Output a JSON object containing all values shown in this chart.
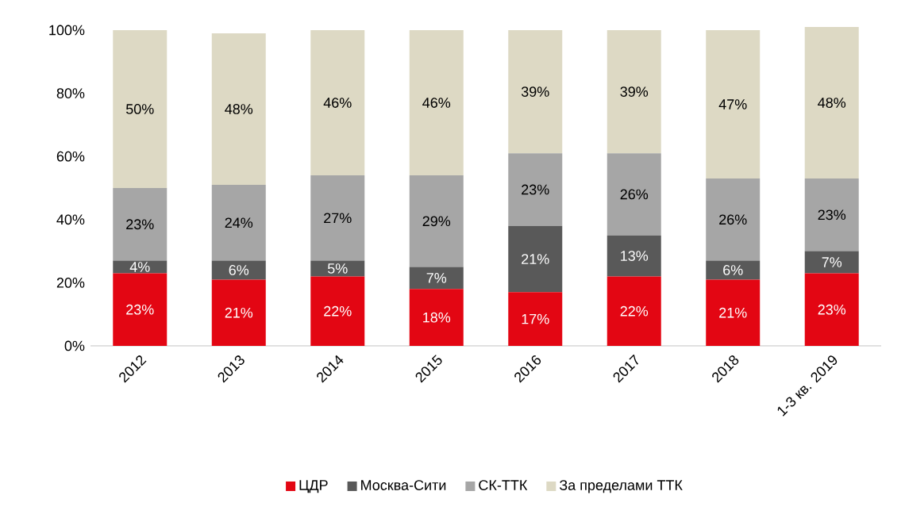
{
  "chart_data": {
    "type": "bar",
    "stacked": true,
    "legend": "bottom",
    "categories": [
      "2012",
      "2013",
      "2014",
      "2015",
      "2016",
      "2017",
      "2018",
      "1-3 кв. 2019"
    ],
    "ylim": [
      0,
      101
    ],
    "yticks": [
      {
        "value": 0,
        "label": "0%"
      },
      {
        "value": 20,
        "label": "20%"
      },
      {
        "value": 40,
        "label": "40%"
      },
      {
        "value": 60,
        "label": "60%"
      },
      {
        "value": 80,
        "label": "80%"
      },
      {
        "value": 100,
        "label": "100%"
      }
    ],
    "series": [
      {
        "name": "ЦДР",
        "color": "#e30613",
        "values": [
          23,
          21,
          22,
          18,
          17,
          22,
          21,
          23
        ],
        "value_labels": [
          "23%",
          "21%",
          "22%",
          "18%",
          "17%",
          "22%",
          "21%",
          "23%"
        ]
      },
      {
        "name": "Москва-Сити",
        "color": "#595959",
        "values": [
          4,
          6,
          5,
          7,
          21,
          13,
          6,
          7
        ],
        "value_labels": [
          "4%",
          "6%",
          "5%",
          "7%",
          "21%",
          "13%",
          "6%",
          "7%"
        ]
      },
      {
        "name": "СК-ТТК",
        "color": "#a6a6a6",
        "values": [
          23,
          24,
          27,
          29,
          23,
          26,
          26,
          23
        ],
        "value_labels": [
          "23%",
          "24%",
          "27%",
          "29%",
          "23%",
          "26%",
          "26%",
          "23%"
        ]
      },
      {
        "name": "За пределами  ТТК",
        "color": "#ddd9c4",
        "values": [
          50,
          48,
          46,
          46,
          39,
          39,
          47,
          48
        ],
        "value_labels": [
          "50%",
          "48%",
          "46%",
          "46%",
          "39%",
          "39%",
          "47%",
          "48%"
        ]
      }
    ]
  }
}
